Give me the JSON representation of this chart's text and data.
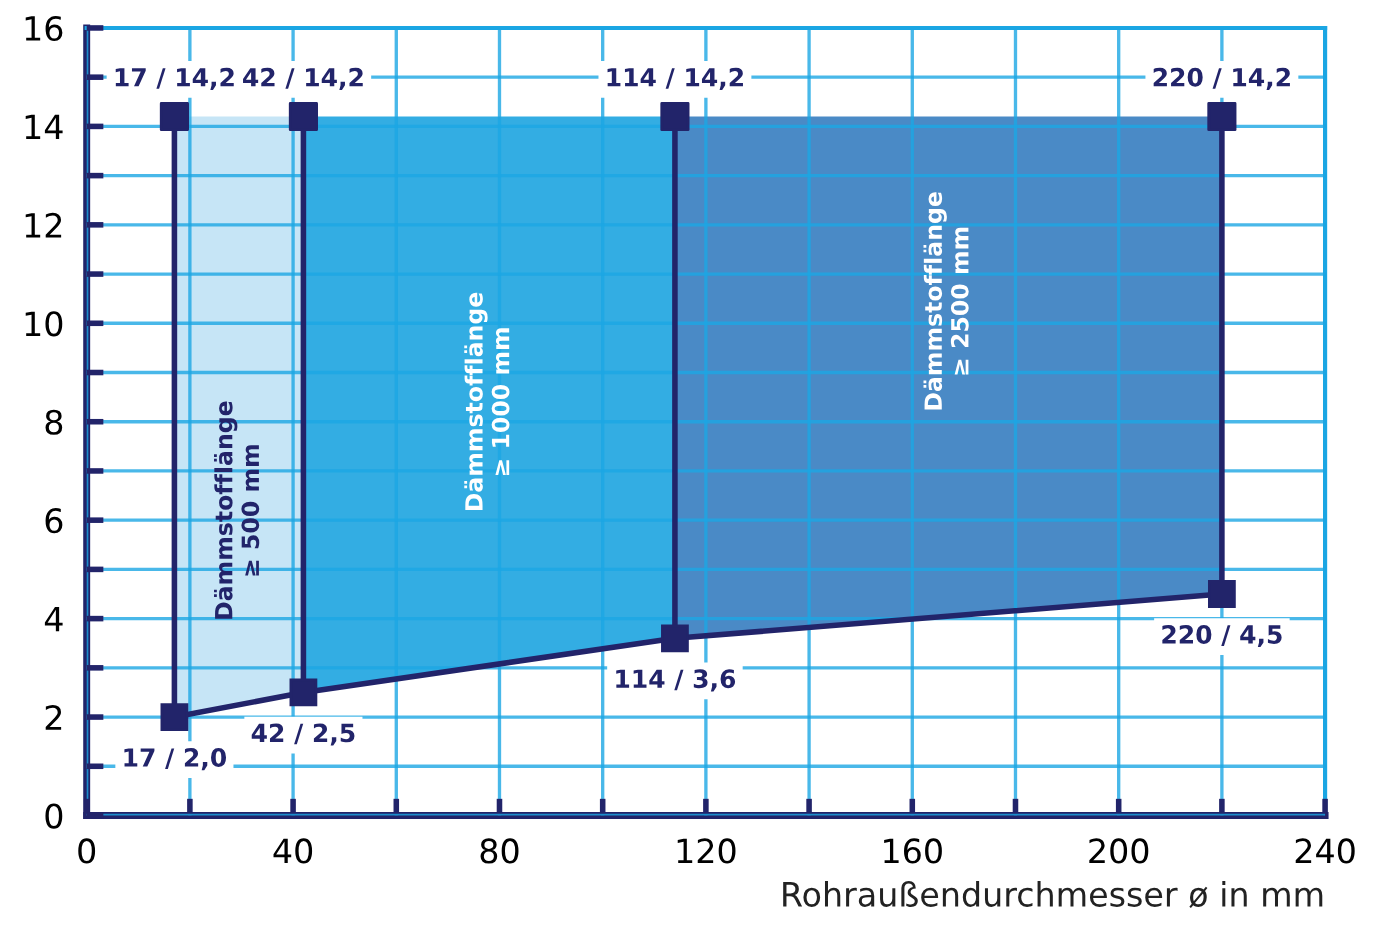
{
  "chart_data": {
    "type": "area",
    "xlabel": "Rohraußendurchmesser ø in mm",
    "xlim": [
      0,
      240
    ],
    "ylim": [
      0,
      16
    ],
    "xticks": [
      0,
      {
        "value": 20,
        "label": null
      },
      40,
      {
        "value": 60,
        "label": null
      },
      80,
      {
        "value": 100,
        "label": null
      },
      120,
      {
        "value": 140,
        "label": null
      },
      160,
      {
        "value": 180,
        "label": null
      },
      200,
      {
        "value": 220,
        "label": null
      },
      240
    ],
    "yticks": [
      0,
      {
        "value": 1,
        "label": null
      },
      2,
      {
        "value": 3,
        "label": null
      },
      4,
      {
        "value": 5,
        "label": null
      },
      6,
      {
        "value": 7,
        "label": null
      },
      8,
      {
        "value": 9,
        "label": null
      },
      10,
      {
        "value": 11,
        "label": null
      },
      12,
      {
        "value": 13,
        "label": null
      },
      14,
      {
        "value": 15,
        "label": null
      },
      16
    ],
    "grid": true,
    "series": [
      {
        "color": "#c6e5f6",
        "x": [
          17,
          42
        ],
        "values": [
          14.2,
          14.2
        ]
      },
      {
        "color": "#33ade3",
        "x": [
          42,
          114
        ],
        "values": [
          14.2,
          14.2
        ]
      },
      {
        "color": "#4a8ac6",
        "x": [
          114,
          220
        ],
        "values": [
          14.2,
          14.2
        ]
      },
      {
        "type": "line",
        "color": "#22246a",
        "marker": "square",
        "x": [
          17,
          42,
          114,
          220
        ],
        "values": [
          2.0,
          2.5,
          3.6,
          4.5
        ],
        "value_labels": [
          "17 / 2,0",
          "42 / 2,5",
          "114 / 3,6",
          "220 / 4,5"
        ]
      },
      {
        "type": "lollipop",
        "color": "#22246a",
        "marker": "square",
        "x": [
          17,
          42,
          114,
          220
        ],
        "values": [
          14.2,
          14.2,
          14.2,
          14.2
        ],
        "value_labels": [
          "17 / 14,2",
          "42 / 14,2",
          "114 / 14,2",
          "220 / 14,2"
        ]
      }
    ],
    "annotations": [
      "Dämmstofflänge\n≥ 500 mm",
      "Dämmstofflänge\n≥ 1000 mm",
      "Dämmstofflänge\n≥ 2500 mm"
    ]
  }
}
